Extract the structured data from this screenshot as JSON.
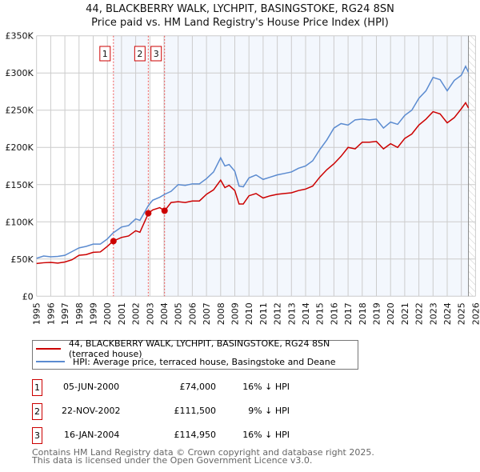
{
  "title": "44, BLACKBERRY WALK, LYCHPIT, BASINGSTOKE, RG24 8SN",
  "subtitle": "Price paid vs. HM Land Registry's House Price Index (HPI)",
  "chart_data": {
    "type": "line",
    "xlim": [
      1995,
      2026
    ],
    "ylim": [
      0,
      350000
    ],
    "x_ticks": [
      "1995",
      "1996",
      "1997",
      "1998",
      "1999",
      "2000",
      "2001",
      "2002",
      "2003",
      "2004",
      "2005",
      "2006",
      "2007",
      "2008",
      "2009",
      "2010",
      "2011",
      "2012",
      "2013",
      "2014",
      "2015",
      "2016",
      "2017",
      "2018",
      "2019",
      "2020",
      "2021",
      "2022",
      "2023",
      "2024",
      "2025",
      "2026"
    ],
    "y_ticks": [
      {
        "v": 0,
        "label": "£0"
      },
      {
        "v": 50000,
        "label": "£50K"
      },
      {
        "v": 100000,
        "label": "£100K"
      },
      {
        "v": 150000,
        "label": "£150K"
      },
      {
        "v": 200000,
        "label": "£200K"
      },
      {
        "v": 250000,
        "label": "£250K"
      },
      {
        "v": 300000,
        "label": "£300K"
      },
      {
        "v": 350000,
        "label": "£350K"
      }
    ],
    "grid": true,
    "series": [
      {
        "name": "44, BLACKBERRY WALK, LYCHPIT, BASINGSTOKE, RG24 8SN (terraced house)",
        "color": "#cc0000",
        "x": [
          1995,
          1995.5,
          1996,
          1996.5,
          1997,
          1997.5,
          1998,
          1998.5,
          1999,
          1999.5,
          2000,
          2000.4,
          2001,
          2001.5,
          2002,
          2002.3,
          2002.9,
          2003.2,
          2003.7,
          2004.05,
          2004.5,
          2005,
          2005.5,
          2006,
          2006.5,
          2007,
          2007.5,
          2008,
          2008.3,
          2008.6,
          2009,
          2009.3,
          2009.6,
          2010,
          2010.5,
          2011,
          2011.5,
          2012,
          2012.5,
          2013,
          2013.5,
          2014,
          2014.5,
          2015,
          2015.5,
          2016,
          2016.5,
          2017,
          2017.5,
          2018,
          2018.5,
          2019,
          2019.5,
          2020,
          2020.5,
          2021,
          2021.5,
          2022,
          2022.5,
          2023,
          2023.5,
          2024,
          2024.5,
          2025,
          2025.3,
          2025.5
        ],
        "y": [
          44000,
          45000,
          45500,
          44500,
          46000,
          49000,
          55000,
          56000,
          59000,
          59500,
          67000,
          74000,
          79000,
          81000,
          88000,
          86000,
          111500,
          116000,
          119000,
          114950,
          126000,
          127000,
          126000,
          128000,
          128000,
          137000,
          143000,
          156000,
          146000,
          149000,
          142000,
          124000,
          124000,
          135000,
          138000,
          132000,
          135000,
          137000,
          138000,
          139000,
          142000,
          144000,
          148000,
          160000,
          170000,
          178000,
          188000,
          200000,
          198000,
          207000,
          207000,
          208000,
          198000,
          205000,
          200000,
          212000,
          218000,
          230000,
          238000,
          248000,
          245000,
          233000,
          240000,
          252000,
          260000,
          253000
        ]
      },
      {
        "name": "HPI: Average price, terraced house, Basingstoke and Deane",
        "color": "#5b8bd0",
        "x": [
          1995,
          1995.5,
          1996,
          1996.5,
          1997,
          1997.5,
          1998,
          1998.5,
          1999,
          1999.5,
          2000,
          2000.4,
          2001,
          2001.5,
          2002,
          2002.3,
          2002.9,
          2003.2,
          2003.7,
          2004.05,
          2004.5,
          2005,
          2005.5,
          2006,
          2006.5,
          2007,
          2007.5,
          2008,
          2008.3,
          2008.6,
          2009,
          2009.3,
          2009.6,
          2010,
          2010.5,
          2011,
          2011.5,
          2012,
          2012.5,
          2013,
          2013.5,
          2014,
          2014.5,
          2015,
          2015.5,
          2016,
          2016.5,
          2017,
          2017.5,
          2018,
          2018.5,
          2019,
          2019.5,
          2020,
          2020.5,
          2021,
          2021.5,
          2022,
          2022.5,
          2023,
          2023.5,
          2024,
          2024.5,
          2025,
          2025.3,
          2025.5
        ],
        "y": [
          51000,
          54000,
          53000,
          53500,
          55000,
          60000,
          65000,
          67000,
          70000,
          70000,
          77000,
          85000,
          93000,
          95000,
          104000,
          102000,
          122000,
          129000,
          133000,
          137000,
          141000,
          150000,
          149000,
          151000,
          151000,
          158000,
          167000,
          186000,
          175000,
          177000,
          168000,
          148000,
          147000,
          159000,
          163000,
          157000,
          160000,
          163000,
          165000,
          167000,
          172000,
          175000,
          182000,
          197000,
          210000,
          226000,
          232000,
          230000,
          237000,
          238000,
          237000,
          238000,
          226000,
          234000,
          231000,
          243000,
          250000,
          266000,
          276000,
          294000,
          291000,
          276000,
          290000,
          297000,
          309000,
          301000
        ]
      }
    ],
    "sales": [
      {
        "label": "1",
        "x": 2000.43,
        "y": 74000
      },
      {
        "label": "2",
        "x": 2002.89,
        "y": 111500
      },
      {
        "label": "3",
        "x": 2004.04,
        "y": 114950
      }
    ],
    "property_data_end": 2025.5,
    "legend": "below"
  },
  "legend": {
    "red": "44, BLACKBERRY WALK, LYCHPIT, BASINGSTOKE, RG24 8SN (terraced house)",
    "blue": "HPI: Average price, terraced house, Basingstoke and Deane"
  },
  "transactions": [
    {
      "num": "1",
      "date": "05-JUN-2000",
      "price": "£74,000",
      "hpi": "16% ↓ HPI"
    },
    {
      "num": "2",
      "date": "22-NOV-2002",
      "price": "£111,500",
      "hpi": "9% ↓ HPI"
    },
    {
      "num": "3",
      "date": "16-JAN-2004",
      "price": "£114,950",
      "hpi": "16% ↓ HPI"
    }
  ],
  "footer": {
    "line1": "Contains HM Land Registry data © Crown copyright and database right 2025.",
    "line2": "This data is licensed under the Open Government Licence v3.0."
  }
}
